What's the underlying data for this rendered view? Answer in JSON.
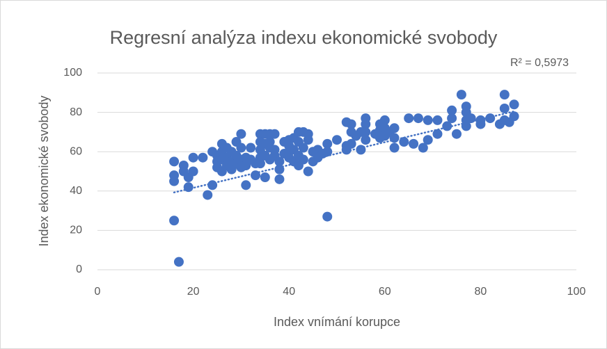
{
  "chart_data": {
    "type": "scatter",
    "title": "Regresní analýza indexu ekonomické svobody",
    "xlabel": "Index vnímání korupce",
    "ylabel": "Index ekonomické svobody",
    "annotation": "R² = 0,5973",
    "color": "#4472c4",
    "xlim": [
      0,
      100
    ],
    "xticks": [
      0,
      20,
      40,
      60,
      80,
      100
    ],
    "ylim": [
      0,
      100
    ],
    "yticks": [
      0,
      20,
      40,
      60,
      80,
      100
    ],
    "grid": true,
    "trendline": {
      "x": [
        16,
        87
      ],
      "y": [
        39.3,
        80.5
      ]
    },
    "x": [
      16,
      16,
      16,
      16,
      17,
      18,
      18,
      19,
      19,
      20,
      20,
      22,
      23,
      24,
      24,
      25,
      25,
      25,
      26,
      26,
      26,
      26,
      27,
      27,
      27,
      28,
      28,
      28,
      29,
      29,
      29,
      30,
      30,
      30,
      30,
      31,
      31,
      31,
      32,
      32,
      33,
      33,
      34,
      34,
      34,
      34,
      34,
      35,
      35,
      35,
      35,
      36,
      36,
      36,
      36,
      37,
      37,
      37,
      38,
      38,
      38,
      39,
      39,
      40,
      40,
      40,
      40,
      41,
      41,
      41,
      42,
      42,
      42,
      42,
      43,
      43,
      43,
      44,
      44,
      44,
      45,
      45,
      46,
      46,
      47,
      48,
      48,
      48,
      50,
      52,
      52,
      52,
      53,
      53,
      53,
      54,
      55,
      55,
      56,
      56,
      56,
      56,
      58,
      59,
      59,
      59,
      60,
      60,
      60,
      61,
      62,
      62,
      62,
      64,
      65,
      66,
      67,
      68,
      69,
      69,
      71,
      71,
      73,
      74,
      74,
      75,
      76,
      77,
      77,
      77,
      77,
      78,
      80,
      80,
      82,
      84,
      85,
      85,
      85,
      86,
      87,
      87
    ],
    "y": [
      55,
      48,
      45,
      25,
      4,
      53,
      50,
      47,
      42,
      57,
      50,
      57,
      38,
      43,
      60,
      58,
      55,
      52,
      64,
      60,
      56,
      50,
      62,
      57,
      53,
      60,
      55,
      51,
      65,
      58,
      54,
      69,
      62,
      56,
      52,
      43,
      57,
      53,
      62,
      56,
      48,
      54,
      69,
      65,
      61,
      57,
      54,
      69,
      64,
      58,
      47,
      69,
      65,
      62,
      56,
      69,
      61,
      58,
      55,
      51,
      46,
      59,
      65,
      66,
      63,
      60,
      57,
      67,
      61,
      55,
      70,
      65,
      58,
      53,
      70,
      62,
      56,
      69,
      66,
      50,
      60,
      55,
      61,
      57,
      59,
      27,
      64,
      60,
      66,
      75,
      63,
      61,
      74,
      70,
      64,
      68,
      61,
      70,
      77,
      74,
      70,
      66,
      69,
      74,
      71,
      67,
      76,
      72,
      68,
      70,
      72,
      67,
      62,
      65,
      77,
      64,
      77,
      62,
      76,
      66,
      76,
      69,
      73,
      81,
      77,
      69,
      89,
      83,
      80,
      76,
      73,
      77,
      76,
      74,
      77,
      74,
      89,
      82,
      76,
      75,
      84,
      78
    ]
  }
}
